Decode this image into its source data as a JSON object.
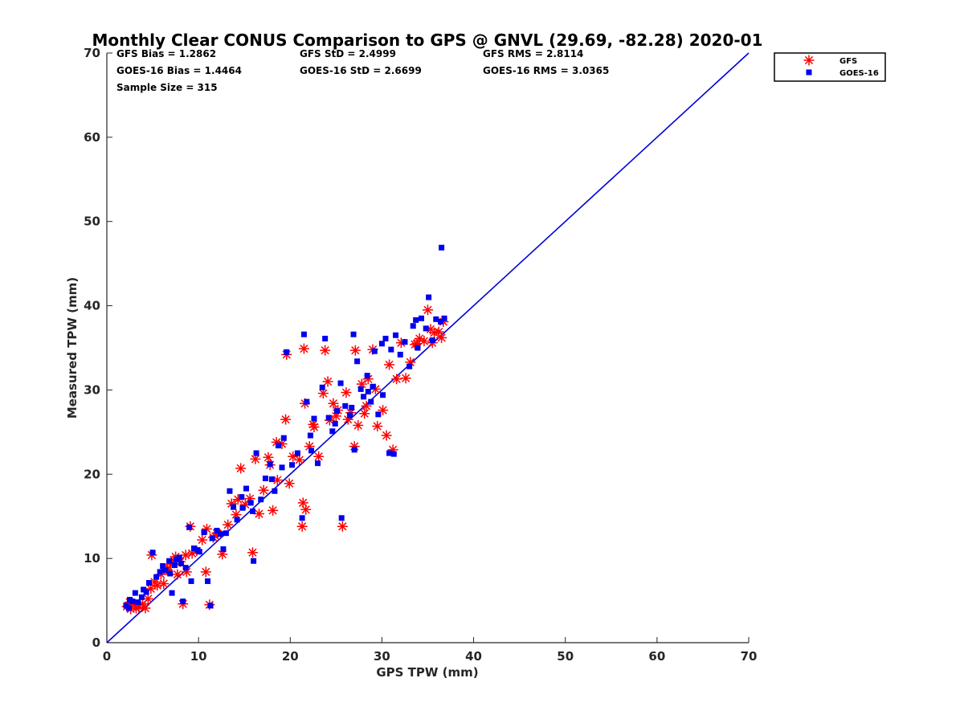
{
  "chart_data": {
    "type": "scatter",
    "title": "Monthly Clear CONUS Comparison to GPS @ GNVL (29.69, -82.28) 2020-01",
    "xlabel": "GPS TPW (mm)",
    "ylabel": "Measured TPW (mm)",
    "xlim": [
      0,
      70
    ],
    "ylim": [
      0,
      70
    ],
    "xticks": [
      "0",
      "10",
      "20",
      "30",
      "40",
      "50",
      "60",
      "70"
    ],
    "yticks": [
      "0",
      "10",
      "20",
      "30",
      "40",
      "50",
      "60",
      "70"
    ],
    "grid": false,
    "legend_position": "top-right outside",
    "stats": {
      "gfs_bias": "GFS Bias = 1.2862",
      "gfs_std": "GFS StD = 2.4999",
      "gfs_rms": "GFS RMS = 2.8114",
      "goes_bias": "GOES-16 Bias = 1.4464",
      "goes_std": "GOES-16 StD = 2.6699",
      "goes_rms": "GOES-16 RMS = 3.0365",
      "sample_size": "Sample Size = 315"
    },
    "reference_line": {
      "x": [
        0,
        70
      ],
      "y": [
        0,
        70
      ],
      "color": "#0000dd"
    },
    "series": [
      {
        "name": "GFS",
        "marker": "asterisk",
        "color": "#ff0000",
        "points": [
          [
            2.2,
            4.3
          ],
          [
            2.6,
            4.0
          ],
          [
            3.0,
            4.5
          ],
          [
            3.5,
            4.2
          ],
          [
            3.9,
            4.6
          ],
          [
            4.2,
            4.1
          ],
          [
            4.5,
            5.2
          ],
          [
            4.8,
            6.4
          ],
          [
            4.9,
            10.4
          ],
          [
            5.2,
            7.2
          ],
          [
            5.5,
            6.8
          ],
          [
            5.9,
            8.1
          ],
          [
            6.2,
            7.0
          ],
          [
            6.6,
            8.6
          ],
          [
            7.0,
            9.3
          ],
          [
            7.3,
            9.8
          ],
          [
            7.7,
            8.1
          ],
          [
            8.0,
            9.6
          ],
          [
            8.3,
            4.6
          ],
          [
            8.7,
            8.4
          ],
          [
            9.1,
            13.8
          ],
          [
            9.3,
            10.6
          ],
          [
            9.8,
            10.9
          ],
          [
            10.4,
            12.2
          ],
          [
            10.8,
            8.4
          ],
          [
            10.9,
            13.5
          ],
          [
            11.2,
            4.5
          ],
          [
            11.6,
            12.5
          ],
          [
            12.1,
            12.9
          ],
          [
            12.6,
            10.5
          ],
          [
            13.2,
            14.0
          ],
          [
            13.6,
            16.5
          ],
          [
            14.1,
            15.2
          ],
          [
            14.6,
            20.7
          ],
          [
            15.1,
            16.4
          ],
          [
            15.6,
            17.1
          ],
          [
            15.9,
            10.7
          ],
          [
            16.2,
            21.8
          ],
          [
            16.6,
            15.3
          ],
          [
            17.1,
            18.1
          ],
          [
            17.6,
            22.0
          ],
          [
            18.1,
            15.7
          ],
          [
            18.6,
            19.3
          ],
          [
            19.1,
            23.6
          ],
          [
            19.6,
            34.2
          ],
          [
            19.9,
            18.9
          ],
          [
            20.3,
            22.1
          ],
          [
            21.0,
            21.7
          ],
          [
            21.3,
            13.8
          ],
          [
            21.4,
            16.6
          ],
          [
            21.6,
            28.4
          ],
          [
            21.7,
            15.8
          ],
          [
            22.1,
            23.3
          ],
          [
            22.6,
            25.6
          ],
          [
            23.1,
            22.1
          ],
          [
            23.6,
            29.6
          ],
          [
            23.8,
            34.7
          ],
          [
            24.3,
            26.4
          ],
          [
            24.7,
            28.4
          ],
          [
            25.2,
            27.6
          ],
          [
            25.7,
            13.8
          ],
          [
            26.1,
            29.7
          ],
          [
            26.6,
            27.3
          ],
          [
            27.0,
            23.3
          ],
          [
            27.1,
            34.7
          ],
          [
            27.4,
            25.8
          ],
          [
            27.8,
            30.7
          ],
          [
            28.1,
            27.2
          ],
          [
            28.5,
            31.3
          ],
          [
            29.0,
            34.8
          ],
          [
            29.5,
            25.7
          ],
          [
            30.1,
            27.6
          ],
          [
            30.5,
            24.6
          ],
          [
            30.8,
            33.0
          ],
          [
            31.2,
            22.9
          ],
          [
            31.6,
            31.3
          ],
          [
            32.1,
            35.6
          ],
          [
            32.6,
            31.4
          ],
          [
            33.1,
            33.3
          ],
          [
            33.6,
            35.4
          ],
          [
            34.1,
            36.1
          ],
          [
            34.6,
            35.8
          ],
          [
            35.0,
            39.5
          ],
          [
            35.3,
            37.2
          ],
          [
            35.7,
            36.8
          ],
          [
            36.2,
            36.9
          ],
          [
            36.5,
            36.2
          ],
          [
            36.7,
            38.1
          ],
          [
            21.5,
            34.9
          ],
          [
            2.5,
            4.8
          ],
          [
            3.2,
            4.1
          ],
          [
            6.5,
            8.7
          ],
          [
            7.5,
            10.2
          ],
          [
            8.6,
            10.4
          ],
          [
            12.0,
            13.0
          ],
          [
            14.3,
            17.0
          ],
          [
            17.8,
            21.1
          ],
          [
            18.5,
            23.8
          ],
          [
            19.5,
            26.5
          ],
          [
            22.5,
            25.9
          ],
          [
            24.1,
            31.0
          ],
          [
            25.0,
            26.9
          ],
          [
            26.3,
            26.5
          ],
          [
            28.3,
            28.1
          ],
          [
            29.3,
            30.1
          ],
          [
            33.8,
            35.5
          ],
          [
            35.5,
            35.6
          ]
        ]
      },
      {
        "name": "GOES-16",
        "marker": "square",
        "color": "#0000ee",
        "points": [
          [
            2.1,
            4.4
          ],
          [
            2.5,
            5.1
          ],
          [
            2.8,
            4.9
          ],
          [
            3.1,
            5.9
          ],
          [
            3.4,
            4.8
          ],
          [
            3.8,
            5.4
          ],
          [
            4.3,
            6.0
          ],
          [
            4.6,
            7.1
          ],
          [
            5.0,
            10.7
          ],
          [
            5.4,
            7.8
          ],
          [
            5.8,
            8.4
          ],
          [
            6.1,
            9.1
          ],
          [
            6.4,
            8.6
          ],
          [
            6.8,
            9.7
          ],
          [
            7.1,
            5.9
          ],
          [
            7.4,
            9.2
          ],
          [
            7.9,
            10.1
          ],
          [
            8.3,
            4.9
          ],
          [
            8.6,
            8.9
          ],
          [
            9.0,
            13.7
          ],
          [
            9.2,
            7.3
          ],
          [
            9.5,
            11.2
          ],
          [
            10.1,
            10.8
          ],
          [
            10.6,
            13.1
          ],
          [
            11.0,
            7.3
          ],
          [
            11.3,
            4.4
          ],
          [
            11.5,
            12.4
          ],
          [
            12.0,
            13.3
          ],
          [
            12.7,
            11.1
          ],
          [
            13.0,
            13.0
          ],
          [
            13.4,
            18.0
          ],
          [
            13.8,
            16.1
          ],
          [
            14.2,
            14.6
          ],
          [
            14.7,
            17.3
          ],
          [
            15.2,
            18.3
          ],
          [
            15.7,
            16.6
          ],
          [
            16.0,
            9.7
          ],
          [
            16.3,
            22.5
          ],
          [
            16.8,
            17.0
          ],
          [
            17.3,
            19.5
          ],
          [
            17.8,
            21.2
          ],
          [
            18.3,
            18.0
          ],
          [
            18.7,
            23.4
          ],
          [
            19.3,
            24.3
          ],
          [
            19.6,
            34.5
          ],
          [
            20.2,
            21.1
          ],
          [
            20.8,
            22.5
          ],
          [
            21.3,
            14.8
          ],
          [
            21.5,
            36.6
          ],
          [
            21.8,
            28.6
          ],
          [
            22.2,
            24.6
          ],
          [
            22.6,
            26.6
          ],
          [
            23.0,
            21.3
          ],
          [
            23.5,
            30.3
          ],
          [
            23.8,
            36.1
          ],
          [
            24.2,
            26.7
          ],
          [
            24.6,
            25.1
          ],
          [
            25.1,
            27.5
          ],
          [
            25.5,
            30.8
          ],
          [
            25.6,
            14.8
          ],
          [
            26.0,
            28.1
          ],
          [
            26.5,
            27.0
          ],
          [
            26.9,
            36.6
          ],
          [
            27.0,
            22.9
          ],
          [
            27.3,
            33.4
          ],
          [
            27.7,
            30.1
          ],
          [
            28.0,
            29.2
          ],
          [
            28.4,
            31.7
          ],
          [
            28.8,
            28.6
          ],
          [
            29.2,
            34.6
          ],
          [
            29.6,
            27.1
          ],
          [
            30.1,
            29.4
          ],
          [
            30.4,
            36.1
          ],
          [
            30.8,
            22.5
          ],
          [
            31.3,
            22.4
          ],
          [
            31.5,
            36.5
          ],
          [
            32.0,
            34.2
          ],
          [
            32.5,
            35.7
          ],
          [
            33.0,
            32.8
          ],
          [
            33.4,
            37.6
          ],
          [
            33.9,
            35.0
          ],
          [
            34.3,
            38.5
          ],
          [
            34.8,
            37.3
          ],
          [
            35.1,
            41.0
          ],
          [
            35.5,
            35.9
          ],
          [
            35.9,
            38.4
          ],
          [
            36.4,
            38.1
          ],
          [
            36.5,
            46.9
          ],
          [
            36.8,
            38.5
          ],
          [
            2.4,
            4.1
          ],
          [
            4.0,
            6.3
          ],
          [
            6.9,
            8.2
          ],
          [
            7.6,
            9.9
          ],
          [
            8.1,
            9.4
          ],
          [
            9.9,
            11.0
          ],
          [
            12.4,
            12.9
          ],
          [
            14.8,
            16.0
          ],
          [
            15.9,
            15.6
          ],
          [
            18.0,
            19.4
          ],
          [
            19.1,
            20.8
          ],
          [
            22.3,
            22.8
          ],
          [
            24.9,
            26.0
          ],
          [
            26.7,
            27.9
          ],
          [
            28.5,
            29.8
          ],
          [
            29.0,
            30.4
          ],
          [
            30.0,
            35.5
          ],
          [
            31.0,
            34.8
          ],
          [
            33.7,
            38.3
          ]
        ]
      }
    ]
  }
}
